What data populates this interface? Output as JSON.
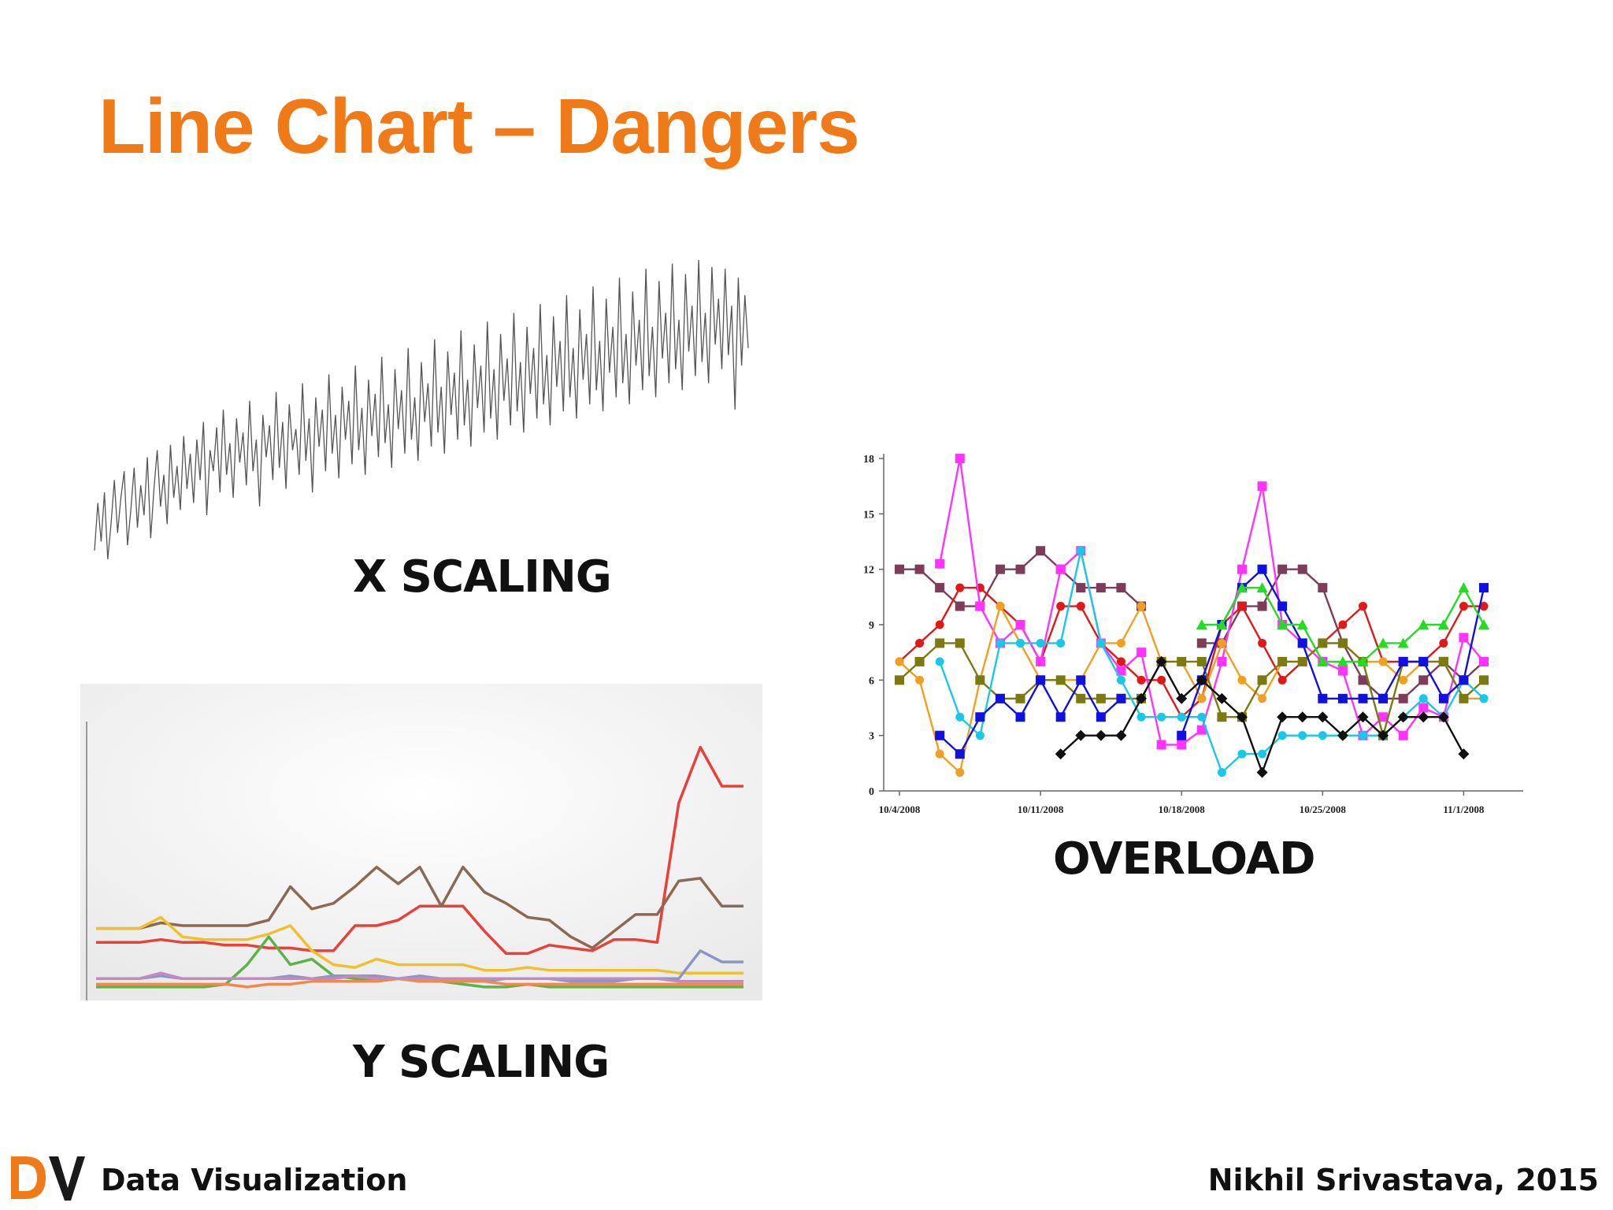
{
  "slide": {
    "title": "Line Chart – Dangers",
    "footer_left": "Data Visualization",
    "footer_right": "Nikhil Srivastava, 2015",
    "logo_text": "DV",
    "colors": {
      "title": "#f07918",
      "logo_d": "#f07918",
      "logo_v": "#1a1a1a"
    }
  },
  "captions": {
    "x_scaling": "X SCALING",
    "overload": "OVERLOAD",
    "y_scaling": "Y SCALING"
  },
  "chart_data": [
    {
      "id": "x-scaling",
      "type": "line",
      "title": "",
      "xlabel": "",
      "ylabel": "",
      "grid": false,
      "axes_visible": false,
      "series": [
        {
          "color": "#555555",
          "values": [
            15,
            42,
            20,
            48,
            10,
            30,
            55,
            25,
            45,
            60,
            18,
            38,
            62,
            28,
            52,
            35,
            68,
            22,
            50,
            72,
            40,
            58,
            30,
            75,
            45,
            63,
            38,
            80,
            50,
            70,
            42,
            78,
            55,
            88,
            35,
            72,
            60,
            85,
            48,
            95,
            58,
            76,
            45,
            90,
            65,
            82,
            52,
            100,
            60,
            78,
            40,
            92,
            68,
            86,
            55,
            105,
            62,
            88,
            50,
            98,
            72,
            84,
            58,
            110,
            66,
            90,
            48,
            102,
            74,
            95,
            60,
            115,
            70,
            92,
            56,
            108,
            78,
            100,
            64,
            120,
            72,
            96,
            58,
            112,
            80,
            104,
            68,
            125,
            76,
            98,
            62,
            118,
            84,
            106,
            70,
            130,
            78,
            102,
            66,
            122,
            88,
            110,
            74,
            135,
            82,
            108,
            70,
            128,
            92,
            116,
            78,
            140,
            86,
            112,
            74,
            132,
            96,
            120,
            82,
            145,
            90,
            118,
            78,
            138,
            100,
            124,
            86,
            150,
            94,
            122,
            82,
            142,
            104,
            130,
            90,
            155,
            98,
            126,
            86,
            148,
            108,
            134,
            94,
            160,
            102,
            130,
            90,
            152,
            112,
            138,
            98,
            165,
            106,
            134,
            94,
            158,
            116,
            142,
            102,
            170,
            110,
            138,
            98,
            162,
            120,
            146,
            106,
            175,
            114,
            142,
            102,
            168,
            124,
            150,
            110,
            178,
            118,
            146,
            106,
            172,
            128,
            154,
            114,
            180,
            122,
            150,
            110,
            176,
            132,
            158,
            118,
            175,
            126,
            154,
            95,
            170,
            120,
            160,
            130
          ]
        }
      ]
    },
    {
      "id": "y-scaling",
      "type": "line",
      "title": "",
      "xlabel": "",
      "ylabel": "",
      "grid": false,
      "ylim": [
        0,
        100
      ],
      "x": [
        0,
        1,
        2,
        3,
        4,
        5,
        6,
        7,
        8,
        9,
        10,
        11,
        12,
        13,
        14,
        15,
        16,
        17,
        18,
        19,
        20,
        21,
        22,
        23,
        24,
        25,
        26,
        27,
        28,
        29,
        30
      ],
      "series": [
        {
          "color": "#e8413a",
          "values": [
            18,
            18,
            18,
            19,
            18,
            18,
            17,
            17,
            16,
            16,
            15,
            15,
            24,
            24,
            26,
            31,
            31,
            31,
            22,
            14,
            14,
            17,
            16,
            15,
            19,
            19,
            18,
            68,
            88,
            74,
            74
          ]
        },
        {
          "color": "#8a6a52",
          "values": [
            23,
            23,
            23,
            25,
            24,
            24,
            24,
            24,
            26,
            38,
            30,
            32,
            38,
            45,
            39,
            45,
            31,
            45,
            36,
            32,
            27,
            26,
            20,
            16,
            22,
            28,
            28,
            40,
            41,
            31,
            31
          ]
        },
        {
          "color": "#f0c030",
          "values": [
            23,
            23,
            23,
            27,
            20,
            19,
            19,
            19,
            21,
            24,
            15,
            10,
            9,
            12,
            10,
            10,
            10,
            10,
            8,
            8,
            9,
            8,
            8,
            8,
            8,
            8,
            8,
            7,
            7,
            7,
            7
          ]
        },
        {
          "color": "#5db24a",
          "values": [
            2,
            2,
            2,
            2,
            2,
            2,
            3,
            10,
            20,
            10,
            12,
            6,
            5,
            4,
            5,
            4,
            4,
            3,
            2,
            2,
            3,
            2,
            2,
            2,
            2,
            2,
            2,
            2,
            2,
            2,
            2
          ]
        },
        {
          "color": "#8c96c6",
          "values": [
            5,
            5,
            5,
            6,
            5,
            5,
            5,
            5,
            5,
            6,
            5,
            6,
            6,
            6,
            5,
            6,
            5,
            5,
            4,
            5,
            5,
            5,
            4,
            4,
            4,
            5,
            5,
            5,
            15,
            11,
            11
          ]
        },
        {
          "color": "#f08a4c",
          "values": [
            3,
            3,
            3,
            3,
            3,
            3,
            3,
            2,
            3,
            3,
            4,
            4,
            4,
            4,
            5,
            4,
            4,
            4,
            4,
            3,
            3,
            3,
            3,
            3,
            3,
            3,
            3,
            3,
            3,
            3,
            3
          ]
        },
        {
          "color": "#c18ac0",
          "values": [
            5,
            5,
            5,
            7,
            5,
            5,
            5,
            5,
            5,
            5,
            5,
            5,
            6,
            5,
            5,
            5,
            5,
            5,
            5,
            5,
            5,
            5,
            5,
            5,
            5,
            5,
            5,
            4,
            4,
            4,
            4
          ]
        }
      ]
    },
    {
      "id": "overload",
      "type": "line",
      "title": "",
      "xlabel": "",
      "ylabel": "",
      "grid": false,
      "ylim": [
        0,
        18
      ],
      "yticks": [
        0,
        3,
        6,
        9,
        12,
        15,
        18
      ],
      "x_dates": [
        "10/4/2008",
        "10/5/2008",
        "10/6/2008",
        "10/7/2008",
        "10/8/2008",
        "10/9/2008",
        "10/10/2008",
        "10/11/2008",
        "10/12/2008",
        "10/13/2008",
        "10/14/2008",
        "10/15/2008",
        "10/16/2008",
        "10/17/2008",
        "10/18/2008",
        "10/19/2008",
        "10/20/2008",
        "10/21/2008",
        "10/22/2008",
        "10/23/2008",
        "10/24/2008",
        "10/25/2008",
        "10/26/2008",
        "10/27/2008",
        "10/28/2008",
        "10/29/2008",
        "10/30/2008",
        "10/31/2008",
        "11/1/2008",
        "11/2/2008"
      ],
      "xtick_labels": [
        "10/4/2008",
        "10/11/2008",
        "10/18/2008",
        "10/25/2008",
        "11/1/2008"
      ],
      "series": [
        {
          "color": "#7d3c5a",
          "marker": "square",
          "values": [
            12,
            12,
            11,
            10,
            10,
            12,
            12,
            13,
            12,
            11,
            11,
            11,
            10,
            null,
            null,
            8,
            8,
            10,
            10,
            12,
            12,
            11,
            8,
            6,
            5,
            5,
            6,
            7,
            6,
            7
          ]
        },
        {
          "color": "#e01818",
          "marker": "circle",
          "values": [
            7,
            8,
            9,
            11,
            11,
            10,
            9,
            7,
            10,
            10,
            8,
            7,
            6,
            6,
            4,
            5,
            9,
            10,
            8,
            6,
            7,
            8,
            9,
            10,
            7,
            7,
            7,
            8,
            10,
            10
          ]
        },
        {
          "color": "#ff33ff",
          "marker": "square",
          "values": [
            null,
            null,
            12.3,
            18,
            10,
            8,
            9,
            7,
            12,
            13,
            8,
            6.5,
            7.5,
            2.5,
            2.5,
            3.3,
            7,
            12,
            16.5,
            9,
            8,
            7,
            6.5,
            3,
            4,
            3,
            4.5,
            4,
            8.3,
            7
          ]
        },
        {
          "color": "#f0a020",
          "marker": "circle",
          "values": [
            7,
            6,
            2,
            1,
            6,
            10,
            8,
            6,
            6,
            6,
            8,
            8,
            10,
            7,
            7,
            5,
            8,
            6,
            5,
            7,
            7,
            8,
            8,
            7,
            7,
            6,
            7,
            7,
            5,
            5
          ]
        },
        {
          "color": "#7a7a10",
          "marker": "square",
          "values": [
            6,
            7,
            8,
            8,
            6,
            5,
            5,
            6,
            6,
            5,
            5,
            5,
            5,
            7,
            7,
            7,
            4,
            4,
            6,
            7,
            7,
            8,
            8,
            7,
            3,
            7,
            7,
            7,
            5,
            6
          ]
        },
        {
          "color": "#18c8e8",
          "marker": "circle",
          "values": [
            null,
            null,
            7,
            4,
            3,
            8,
            8,
            8,
            8,
            13,
            8,
            6,
            4,
            4,
            4,
            4,
            1,
            2,
            2,
            3,
            3,
            3,
            3,
            3,
            3,
            4,
            5,
            4,
            6,
            5
          ]
        },
        {
          "color": "#1010e0",
          "marker": "square",
          "values": [
            null,
            null,
            3,
            2,
            4,
            5,
            4,
            6,
            4,
            6,
            4,
            5,
            null,
            null,
            3,
            6,
            9,
            11,
            12,
            10,
            8,
            5,
            5,
            5,
            5,
            7,
            7,
            5,
            6,
            11
          ]
        },
        {
          "color": "#101010",
          "marker": "diamond",
          "values": [
            null,
            null,
            null,
            null,
            null,
            null,
            null,
            null,
            2,
            3,
            3,
            3,
            5,
            7,
            5,
            6,
            5,
            4,
            1,
            4,
            4,
            4,
            3,
            4,
            3,
            4,
            4,
            4,
            2,
            null
          ]
        },
        {
          "color": "#22dd22",
          "marker": "triangle",
          "values": [
            null,
            null,
            null,
            null,
            null,
            null,
            null,
            null,
            null,
            null,
            null,
            null,
            null,
            null,
            null,
            9,
            9,
            11,
            11,
            9,
            9,
            7,
            7,
            7,
            8,
            8,
            9,
            9,
            11,
            9
          ]
        }
      ]
    }
  ]
}
